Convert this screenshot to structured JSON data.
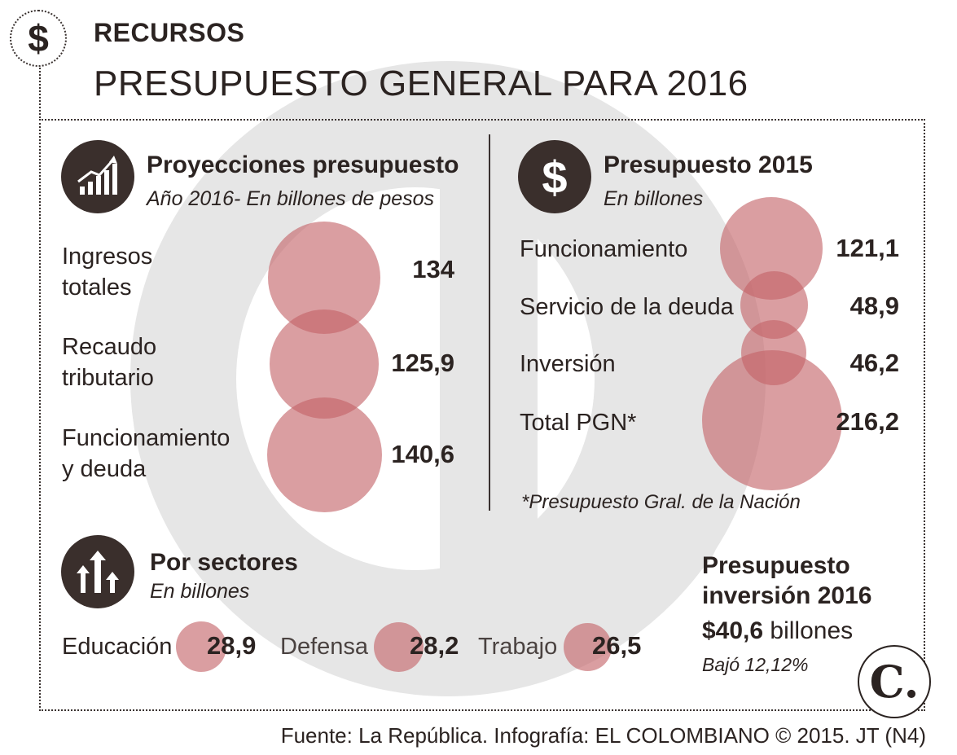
{
  "header": {
    "kicker": "RECURSOS",
    "title": "PRESUPUESTO GENERAL PARA 2016",
    "badge_icon": "dollar-icon"
  },
  "projections": {
    "title": "Proyecciones presupuesto",
    "subtitle": "Año 2016- En billones de pesos",
    "icon": "growth-chart-icon",
    "items": [
      {
        "label_line1": "Ingresos",
        "label_line2": "totales",
        "value": "134"
      },
      {
        "label_line1": "Recaudo",
        "label_line2": "tributario",
        "value": "125,9"
      },
      {
        "label_line1": "Funcionamiento",
        "label_line2": "y deuda",
        "value": "140,6"
      }
    ]
  },
  "budget_2015": {
    "title": "Presupuesto 2015",
    "subtitle": "En billones",
    "icon": "dollar-icon",
    "items": [
      {
        "label": "Funcionamiento",
        "value": "121,1"
      },
      {
        "label": "Servicio de la deuda",
        "value": "48,9"
      },
      {
        "label": "Inversión",
        "value": "46,2"
      },
      {
        "label": "Total PGN*",
        "value": "216,2"
      }
    ],
    "note": "*Presupuesto Gral. de la Nación"
  },
  "sectors": {
    "title": "Por sectores",
    "subtitle": "En billones",
    "icon": "up-arrows-icon",
    "items": [
      {
        "label": "Educación",
        "value": "28,9"
      },
      {
        "label": "Defensa",
        "value": "28,2"
      },
      {
        "label": "Trabajo",
        "value": "26,5"
      }
    ]
  },
  "investment": {
    "title_line1": "Presupuesto",
    "title_line2": "inversión 2016",
    "amount": "$40,6",
    "unit": "billones",
    "change": "Bajó 12,12%"
  },
  "logo": {
    "text": "C."
  },
  "footer": {
    "source": "Fuente: La República. Infografía: EL COLOMBIANO © 2015. JT (N4)"
  },
  "colors": {
    "bubble": "#c46268",
    "dark": "#2b2321",
    "watermark": "#e6e6e6"
  }
}
